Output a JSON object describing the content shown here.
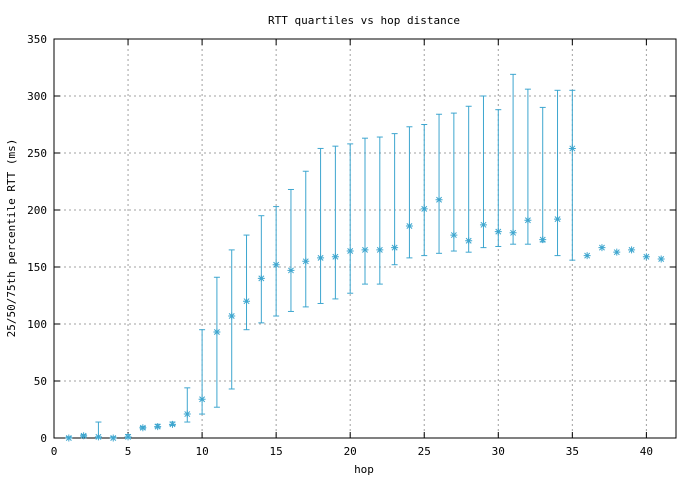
{
  "chart_data": {
    "type": "scatter",
    "title": "RTT quartiles vs hop distance",
    "xlabel": "hop",
    "ylabel": "25/50/75th percentile RTT (ms)",
    "xlim": [
      0,
      42
    ],
    "ylim": [
      0,
      350
    ],
    "xticks": [
      0,
      5,
      10,
      15,
      20,
      25,
      30,
      35,
      40
    ],
    "yticks": [
      0,
      50,
      100,
      150,
      200,
      250,
      300,
      350
    ],
    "grid": true,
    "series_color": "#3ea6cf",
    "series": [
      {
        "hop": [
          1,
          2,
          3,
          4,
          5,
          6,
          7,
          8,
          9,
          10,
          11,
          12,
          13,
          14,
          15,
          16,
          17,
          18,
          19,
          20,
          21,
          22,
          23,
          24,
          25,
          26,
          27,
          28,
          29,
          30,
          31,
          32,
          33,
          34,
          35,
          36,
          37,
          38,
          39,
          40,
          41
        ],
        "median": [
          0,
          2,
          1,
          0,
          1,
          9,
          10,
          12,
          21,
          34,
          93,
          107,
          120,
          140,
          152,
          147,
          155,
          158,
          159,
          164,
          165,
          165,
          167,
          186,
          201,
          209,
          178,
          173,
          187,
          181,
          180,
          191,
          174,
          192,
          254,
          160,
          167,
          163,
          165,
          159,
          157
        ],
        "p25": [
          0,
          1,
          0,
          0,
          0,
          8,
          9,
          11,
          14,
          21,
          27,
          43,
          95,
          101,
          107,
          111,
          115,
          118,
          122,
          127,
          135,
          135,
          152,
          158,
          160,
          162,
          164,
          163,
          167,
          168,
          170,
          170,
          172,
          160,
          156,
          160,
          167,
          163,
          165,
          159,
          157
        ],
        "p75": [
          1,
          3,
          14,
          1,
          3,
          10,
          12,
          14,
          44,
          95,
          141,
          165,
          178,
          195,
          203,
          218,
          234,
          254,
          256,
          258,
          263,
          264,
          267,
          273,
          275,
          284,
          285,
          291,
          300,
          288,
          319,
          306,
          290,
          305,
          305,
          160,
          167,
          163,
          165,
          159,
          157
        ]
      }
    ]
  }
}
